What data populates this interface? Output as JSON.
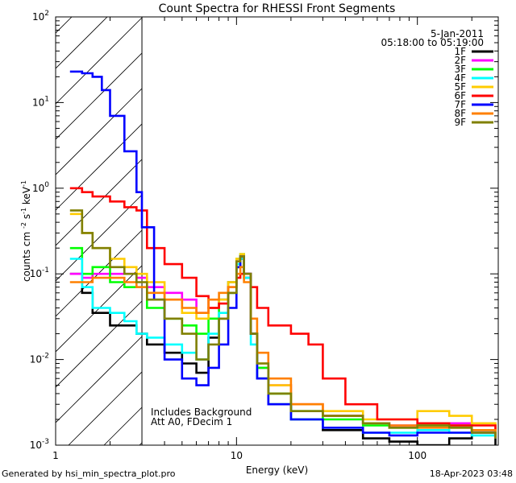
{
  "chart_data": {
    "type": "line",
    "title": "Count Spectra for RHESSI Front Segments",
    "xlabel": "Energy (keV)",
    "ylabel_main": "counts cm",
    "ylabel_parts": [
      "-2",
      " s",
      "-1",
      " keV",
      "-1"
    ],
    "xscale": "log",
    "yscale": "log",
    "xlim": [
      1,
      280
    ],
    "ylim": [
      0.001,
      100
    ],
    "x_ticks": [
      {
        "v": 1,
        "label": "1"
      },
      {
        "v": 10,
        "label": "10"
      },
      {
        "v": 100,
        "label": "100"
      }
    ],
    "y_ticks": [
      {
        "v": 0.001,
        "b": "10",
        "e": "-3"
      },
      {
        "v": 0.01,
        "b": "10",
        "e": "-2"
      },
      {
        "v": 0.1,
        "b": "10",
        "e": "-1"
      },
      {
        "v": 1,
        "b": "10",
        "e": "0"
      },
      {
        "v": 10,
        "b": "10",
        "e": "1"
      },
      {
        "v": 100,
        "b": "10",
        "e": "2"
      }
    ],
    "shaded_region_kev": [
      1,
      3
    ],
    "date": "5-Jan-2011",
    "time_range": "05:18:00 to 05:19:00",
    "annotation_lines": [
      "Includes Background",
      "Att A0, FDecim 1"
    ],
    "series": [
      {
        "name": "1F",
        "color": "#000000",
        "x": [
          1.2,
          1.4,
          1.6,
          2.0,
          2.4,
          2.8,
          3.2,
          4.0,
          5.0,
          6.0,
          7.0,
          8.0,
          9.0,
          10.0,
          10.5,
          11.0,
          12.0,
          13.0,
          15.0,
          20.0,
          30.0,
          50.0,
          70.0,
          100.0,
          150.0,
          200.0,
          270.0
        ],
        "y": [
          0.1,
          0.06,
          0.035,
          0.025,
          0.025,
          0.02,
          0.015,
          0.012,
          0.009,
          0.007,
          0.018,
          0.03,
          0.06,
          0.12,
          0.15,
          0.09,
          0.02,
          0.006,
          0.003,
          0.002,
          0.0015,
          0.0012,
          0.0011,
          0.001,
          0.0012,
          0.0015,
          0.001
        ]
      },
      {
        "name": "2F",
        "color": "#ff00ff",
        "x": [
          1.2,
          1.4,
          1.6,
          2.0,
          2.4,
          2.8,
          3.2,
          4.0,
          5.0,
          6.0,
          7.0,
          8.0,
          9.0,
          10.0,
          10.5,
          11.0,
          12.0,
          13.0,
          15.0,
          20.0,
          30.0,
          50.0,
          70.0,
          100.0,
          150.0,
          200.0,
          270.0
        ],
        "y": [
          0.1,
          0.09,
          0.1,
          0.1,
          0.1,
          0.09,
          0.07,
          0.06,
          0.05,
          0.035,
          0.04,
          0.05,
          0.08,
          0.14,
          0.16,
          0.1,
          0.02,
          0.008,
          0.005,
          0.003,
          0.0022,
          0.0018,
          0.0017,
          0.0018,
          0.0018,
          0.0015,
          0.0012
        ]
      },
      {
        "name": "3F",
        "color": "#00ff00",
        "x": [
          1.2,
          1.4,
          1.6,
          2.0,
          2.4,
          2.8,
          3.2,
          4.0,
          5.0,
          6.0,
          7.0,
          8.0,
          9.0,
          10.0,
          10.5,
          11.0,
          12.0,
          13.0,
          15.0,
          20.0,
          30.0,
          50.0,
          70.0,
          100.0,
          150.0,
          200.0,
          270.0
        ],
        "y": [
          0.2,
          0.1,
          0.12,
          0.08,
          0.07,
          0.07,
          0.04,
          0.03,
          0.025,
          0.02,
          0.03,
          0.05,
          0.08,
          0.15,
          0.17,
          0.1,
          0.02,
          0.008,
          0.004,
          0.0025,
          0.002,
          0.0017,
          0.0016,
          0.0017,
          0.0017,
          0.0015,
          0.0012
        ]
      },
      {
        "name": "4F",
        "color": "#00ffff",
        "x": [
          1.2,
          1.4,
          1.6,
          2.0,
          2.4,
          2.8,
          3.2,
          4.0,
          5.0,
          6.0,
          7.0,
          8.0,
          9.0,
          10.0,
          10.5,
          11.0,
          12.0,
          13.0,
          15.0,
          20.0,
          30.0,
          50.0,
          70.0,
          100.0,
          150.0,
          200.0,
          270.0
        ],
        "y": [
          0.15,
          0.07,
          0.04,
          0.035,
          0.028,
          0.02,
          0.018,
          0.015,
          0.012,
          0.01,
          0.02,
          0.035,
          0.06,
          0.13,
          0.15,
          0.09,
          0.015,
          0.006,
          0.003,
          0.002,
          0.0016,
          0.0014,
          0.0014,
          0.0015,
          0.0014,
          0.0013,
          0.0012
        ]
      },
      {
        "name": "5F",
        "color": "#ffcc00",
        "x": [
          1.2,
          1.4,
          1.6,
          2.0,
          2.4,
          2.8,
          3.2,
          4.0,
          5.0,
          6.0,
          7.0,
          8.0,
          9.0,
          10.0,
          10.5,
          11.0,
          12.0,
          13.0,
          15.0,
          20.0,
          30.0,
          50.0,
          70.0,
          100.0,
          150.0,
          200.0,
          270.0
        ],
        "y": [
          0.5,
          0.3,
          0.2,
          0.15,
          0.12,
          0.1,
          0.08,
          0.05,
          0.035,
          0.03,
          0.04,
          0.05,
          0.08,
          0.15,
          0.17,
          0.1,
          0.02,
          0.009,
          0.005,
          0.003,
          0.0025,
          0.002,
          0.002,
          0.0025,
          0.0022,
          0.0018,
          0.0015
        ]
      },
      {
        "name": "6F",
        "color": "#ff0000",
        "x": [
          1.2,
          1.4,
          1.6,
          2.0,
          2.4,
          2.8,
          3.2,
          4.0,
          5.0,
          6.0,
          7.0,
          8.0,
          9.0,
          10.0,
          10.5,
          11.0,
          12.0,
          13.0,
          15.0,
          20.0,
          25.0,
          30.0,
          40.0,
          60.0,
          100.0,
          150.0,
          270.0
        ],
        "y": [
          1.0,
          0.9,
          0.8,
          0.7,
          0.6,
          0.55,
          0.2,
          0.13,
          0.09,
          0.055,
          0.04,
          0.045,
          0.07,
          0.09,
          0.1,
          0.1,
          0.07,
          0.04,
          0.025,
          0.02,
          0.015,
          0.006,
          0.003,
          0.002,
          0.0018,
          0.0017,
          0.0015
        ]
      },
      {
        "name": "7F",
        "color": "#0000ff",
        "x": [
          1.2,
          1.4,
          1.6,
          1.8,
          2.0,
          2.4,
          2.8,
          3.0,
          3.5,
          4.0,
          5.0,
          6.0,
          7.0,
          8.0,
          9.0,
          10.0,
          10.5,
          11.0,
          12.0,
          13.0,
          15.0,
          20.0,
          30.0,
          50.0,
          70.0,
          100.0,
          270.0
        ],
        "y": [
          23.0,
          22.0,
          20.0,
          14.0,
          7.0,
          2.7,
          0.9,
          0.35,
          0.05,
          0.01,
          0.006,
          0.005,
          0.008,
          0.015,
          0.04,
          0.12,
          0.16,
          0.1,
          0.02,
          0.006,
          0.003,
          0.002,
          0.0016,
          0.0014,
          0.0013,
          0.0014,
          0.0012
        ]
      },
      {
        "name": "8F",
        "color": "#ff8000",
        "x": [
          1.2,
          1.4,
          1.6,
          2.0,
          2.4,
          2.8,
          3.2,
          4.0,
          5.0,
          6.0,
          7.0,
          8.0,
          9.0,
          10.0,
          10.5,
          11.0,
          12.0,
          13.0,
          15.0,
          20.0,
          30.0,
          50.0,
          70.0,
          100.0,
          150.0,
          200.0,
          270.0
        ],
        "y": [
          0.08,
          0.08,
          0.09,
          0.09,
          0.08,
          0.07,
          0.06,
          0.05,
          0.04,
          0.035,
          0.05,
          0.06,
          0.07,
          0.1,
          0.12,
          0.08,
          0.03,
          0.012,
          0.006,
          0.003,
          0.0022,
          0.0018,
          0.0017,
          0.0016,
          0.0016,
          0.0015,
          0.0012
        ]
      },
      {
        "name": "9F",
        "color": "#808000",
        "x": [
          1.2,
          1.4,
          1.6,
          2.0,
          2.4,
          2.8,
          3.2,
          4.0,
          5.0,
          6.0,
          7.0,
          8.0,
          9.0,
          10.0,
          10.5,
          11.0,
          12.0,
          13.0,
          15.0,
          20.0,
          30.0,
          50.0,
          70.0,
          100.0,
          150.0,
          200.0,
          270.0
        ],
        "y": [
          0.55,
          0.3,
          0.2,
          0.12,
          0.1,
          0.08,
          0.05,
          0.03,
          0.02,
          0.01,
          0.015,
          0.03,
          0.06,
          0.14,
          0.16,
          0.1,
          0.02,
          0.009,
          0.004,
          0.0025,
          0.0022,
          0.0018,
          0.0016,
          0.0017,
          0.0016,
          0.0014,
          0.0012
        ]
      }
    ]
  },
  "footer": {
    "generated_by": "Generated by hsi_min_spectra_plot.pro",
    "timestamp": "18-Apr-2023 03:48"
  }
}
